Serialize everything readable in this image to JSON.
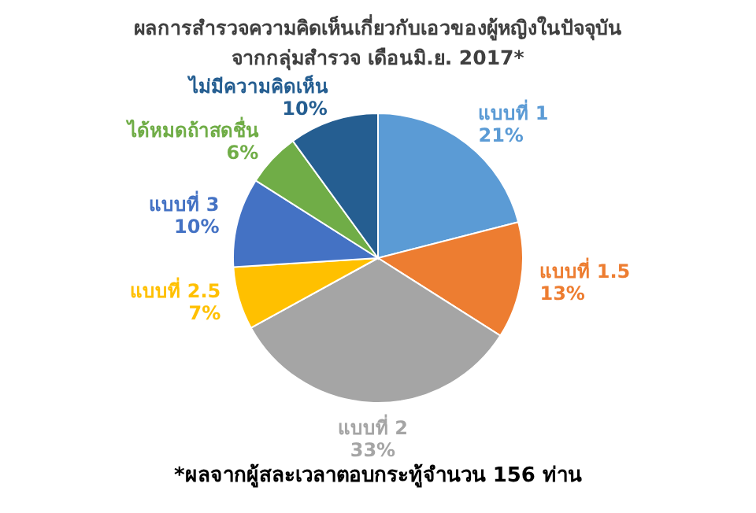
{
  "chart_data": {
    "type": "pie",
    "title": "ผลการสำรวจความคิดเห็นเกี่ยวกับเอวของผู้หญิงในปัจจุบัน",
    "subtitle": "จากกลุ่มสำรวจ เดือนมิ.ย. 2017*",
    "categories": [
      "แบบที่ 1",
      "แบบที่ 1.5",
      "แบบที่ 2",
      "แบบที่ 2.5",
      "แบบที่ 3",
      "ได้หมดถ้าสดชื่น",
      "ไม่มีความคิดเห็น"
    ],
    "values": [
      21,
      13,
      33,
      7,
      10,
      6,
      10
    ],
    "colors": [
      "#5b9bd5",
      "#ed7d31",
      "#a5a5a5",
      "#ffc000",
      "#4472c4",
      "#70ad47",
      "#255e91"
    ],
    "value_labels": [
      "21%",
      "13%",
      "33%",
      "7%",
      "10%",
      "6%",
      "10%"
    ],
    "annotations": [
      "*ผลจากผู้สละเวลาตอบกระทู้จำนวน 156 ท่าน"
    ]
  }
}
